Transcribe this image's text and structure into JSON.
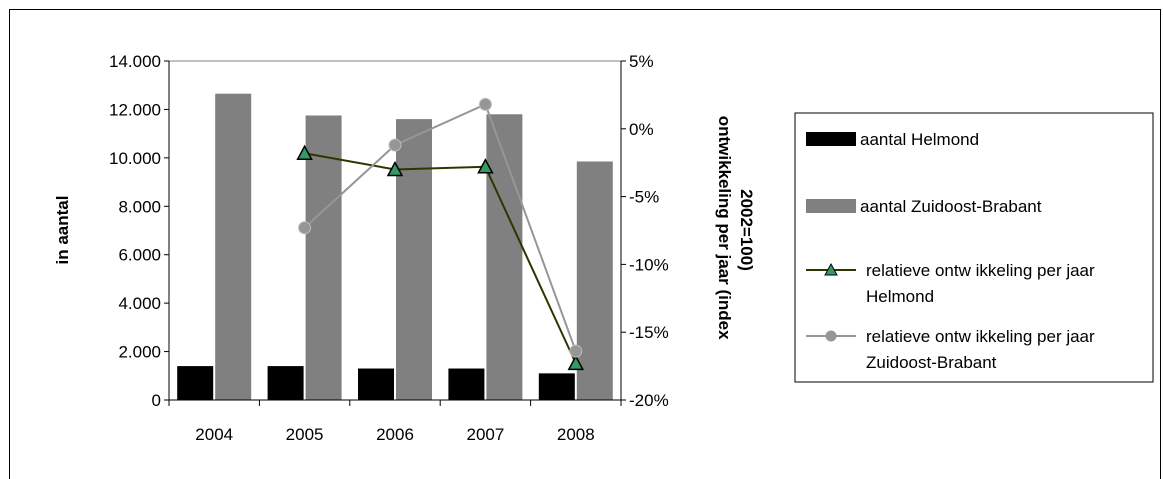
{
  "chart_data": {
    "type": "bar",
    "categories": [
      "2004",
      "2005",
      "2006",
      "2007",
      "2008"
    ],
    "series": [
      {
        "name": "aantal Helmond",
        "kind": "bar",
        "axis": "left",
        "color": "#000000",
        "values": [
          1400,
          1400,
          1300,
          1300,
          1100
        ]
      },
      {
        "name": "aantal Zuidoost-Brabant",
        "kind": "bar",
        "axis": "left",
        "color": "#808080",
        "values": [
          12650,
          11750,
          11600,
          11800,
          9850
        ]
      },
      {
        "name_lines": [
          "relatieve ontw ikkeling per jaar",
          "Helmond"
        ],
        "kind": "line",
        "axis": "right",
        "color": "#333300",
        "marker": "triangle",
        "marker_color": "#339966",
        "values": [
          null,
          -1.8,
          -3.0,
          -2.8,
          -17.3
        ]
      },
      {
        "name_lines": [
          "relatieve ontw ikkeling per jaar",
          "Zuidoost-Brabant"
        ],
        "kind": "line",
        "axis": "right",
        "color": "#969696",
        "marker": "circle",
        "marker_color": "#969696",
        "values": [
          null,
          -7.3,
          -1.2,
          1.8,
          -16.4
        ]
      }
    ],
    "y_left": {
      "label": "in aantal",
      "ylim": [
        0,
        14000
      ],
      "ticks": [
        "0",
        "2.000",
        "4.000",
        "6.000",
        "8.000",
        "10.000",
        "12.000",
        "14.000"
      ]
    },
    "y_right": {
      "label_lines": [
        "ontwikkeling per jaar (index",
        "2002=100)"
      ],
      "ylim": [
        -20,
        5
      ],
      "ticks": [
        "-20%",
        "-15%",
        "-10%",
        "-5%",
        "0%",
        "5%"
      ]
    },
    "legend": "right",
    "grid": false
  }
}
